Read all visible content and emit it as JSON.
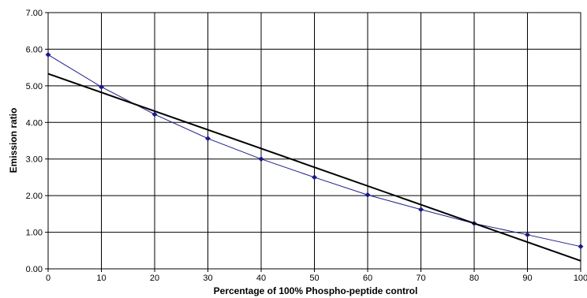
{
  "chart_data": {
    "type": "line",
    "title": "",
    "xlabel": "Percentage of 100% Phospho-peptide control",
    "ylabel": "Emission ratio",
    "xlim": [
      0,
      100
    ],
    "ylim": [
      0,
      7
    ],
    "grid": true,
    "legend": "none",
    "x_ticks": [
      "0",
      "10",
      "20",
      "30",
      "40",
      "50",
      "60",
      "70",
      "80",
      "90",
      "100"
    ],
    "y_ticks": [
      "0.00",
      "1.00",
      "2.00",
      "3.00",
      "4.00",
      "5.00",
      "6.00",
      "7.00"
    ],
    "series": [
      {
        "style": "data-line",
        "color": "#1a1a8c",
        "marker": "diamond",
        "x": [
          0,
          10,
          20,
          30,
          40,
          50,
          60,
          70,
          80,
          90,
          100
        ],
        "y": [
          5.85,
          4.97,
          4.22,
          3.56,
          3.0,
          2.5,
          2.02,
          1.62,
          1.24,
          0.93,
          0.61
        ]
      },
      {
        "style": "trendline",
        "color": "#000000",
        "x": [
          0,
          100
        ],
        "y": [
          5.33,
          0.22
        ]
      }
    ]
  }
}
